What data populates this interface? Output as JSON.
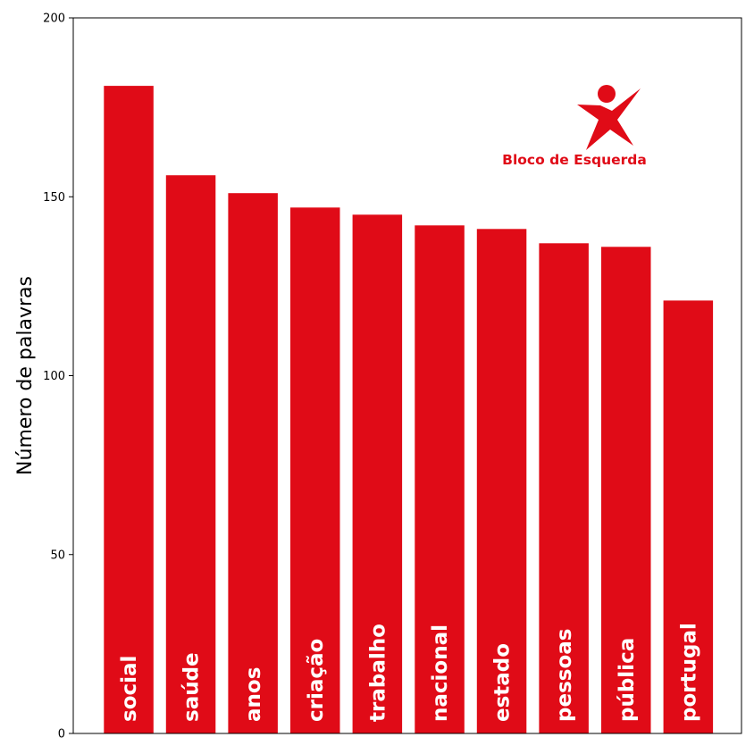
{
  "chart_data": {
    "type": "bar",
    "categories": [
      "social",
      "saúde",
      "anos",
      "criação",
      "trabalho",
      "nacional",
      "estado",
      "pessoas",
      "pública",
      "portugal"
    ],
    "values": [
      181,
      156,
      151,
      147,
      145,
      142,
      141,
      137,
      136,
      121
    ],
    "title": "",
    "xlabel": "",
    "ylabel": "Número de palavras",
    "ylim": [
      0,
      200
    ],
    "yticks": [
      "0",
      "50",
      "100",
      "150",
      "200"
    ],
    "grid": false,
    "bar_color": "#e00b17",
    "bar_label_color": "#ffffff"
  },
  "logo": {
    "text": "Bloco de Esquerda",
    "color": "#e00b17",
    "icon": "star-person-icon"
  }
}
